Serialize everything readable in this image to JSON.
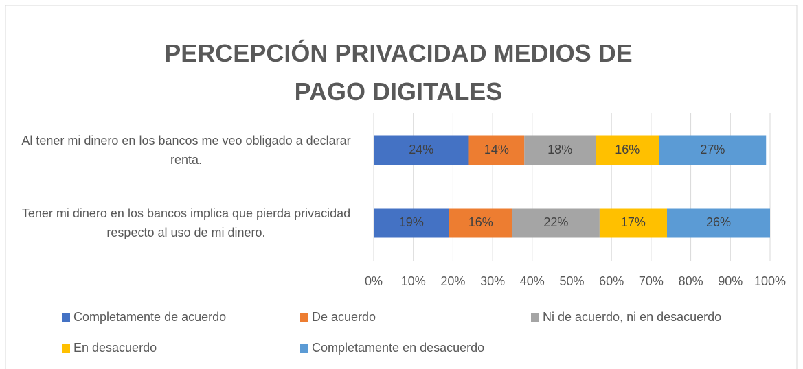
{
  "chart_data": {
    "type": "stacked_barh",
    "title": "PERCEPCIÓN PRIVACIDAD MEDIOS DE PAGO DIGITALES",
    "categories": [
      "Al tener mi dinero en los bancos me veo obligado a declarar renta.",
      "Tener mi dinero en los bancos implica que pierda privacidad respecto al uso de mi dinero."
    ],
    "series": [
      {
        "name": "Completamente de acuerdo",
        "color": "#4472c4",
        "values": [
          24,
          19
        ],
        "value_labels": [
          "24%",
          "19%"
        ]
      },
      {
        "name": "De acuerdo",
        "color": "#ed7d31",
        "values": [
          14,
          16
        ],
        "value_labels": [
          "14%",
          "16%"
        ]
      },
      {
        "name": "Ni de acuerdo, ni en desacuerdo",
        "color": "#a5a5a5",
        "values": [
          18,
          22
        ],
        "value_labels": [
          "18%",
          "22%"
        ]
      },
      {
        "name": "En desacuerdo",
        "color": "#ffc000",
        "values": [
          16,
          17
        ],
        "value_labels": [
          "16%",
          "17%"
        ]
      },
      {
        "name": "Completamente en desacuerdo",
        "color": "#5b9bd5",
        "values": [
          27,
          26
        ],
        "value_labels": [
          "27%",
          "26%"
        ]
      }
    ],
    "xlim": [
      0,
      100
    ],
    "xticks": [
      {
        "value": 0,
        "label": "0%"
      },
      {
        "value": 10,
        "label": "10%"
      },
      {
        "value": 20,
        "label": "20%"
      },
      {
        "value": 30,
        "label": "30%"
      },
      {
        "value": 40,
        "label": "40%"
      },
      {
        "value": 50,
        "label": "50%"
      },
      {
        "value": 60,
        "label": "60%"
      },
      {
        "value": 70,
        "label": "70%"
      },
      {
        "value": 80,
        "label": "80%"
      },
      {
        "value": 90,
        "label": "90%"
      },
      {
        "value": 100,
        "label": "100%"
      }
    ],
    "grid": true,
    "legend": "bottom"
  }
}
